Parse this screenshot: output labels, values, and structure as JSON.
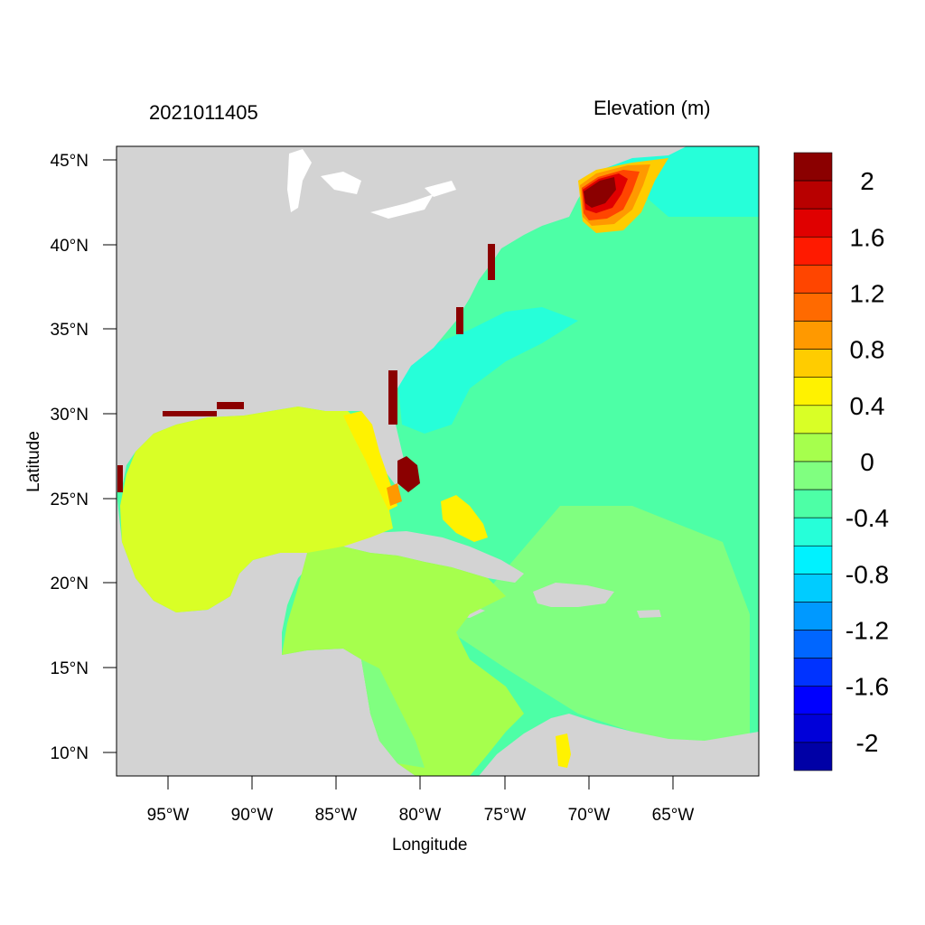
{
  "header": {
    "timestamp": "2021011405",
    "variable": "Elevation (m)"
  },
  "axes": {
    "xlabel": "Longitude",
    "ylabel": "Latitude",
    "x_ticks": [
      "95°W",
      "90°W",
      "85°W",
      "80°W",
      "75°W",
      "70°W",
      "65°W"
    ],
    "y_ticks": [
      "45°N",
      "40°N",
      "35°N",
      "30°N",
      "25°N",
      "20°N",
      "15°N",
      "10°N"
    ]
  },
  "colorbar": {
    "labels": [
      "2",
      "1.6",
      "1.2",
      "0.8",
      "0.4",
      "0",
      "-0.4",
      "-0.8",
      "-1.2",
      "-1.6",
      "-2"
    ],
    "colors": [
      "#8B0000",
      "#B80000",
      "#E00000",
      "#FF1A00",
      "#FF4500",
      "#FF6A00",
      "#FF9900",
      "#FFCC00",
      "#FFF200",
      "#D9FF26",
      "#A6FF4D",
      "#80FF80",
      "#4DFFA6",
      "#26FFD9",
      "#00F2FF",
      "#00CCFF",
      "#0099FF",
      "#0066FF",
      "#0033FF",
      "#0000FF",
      "#0000D9",
      "#0000A6"
    ]
  },
  "colors": {
    "land": "#D3D3D3",
    "frame": "#000000"
  }
}
